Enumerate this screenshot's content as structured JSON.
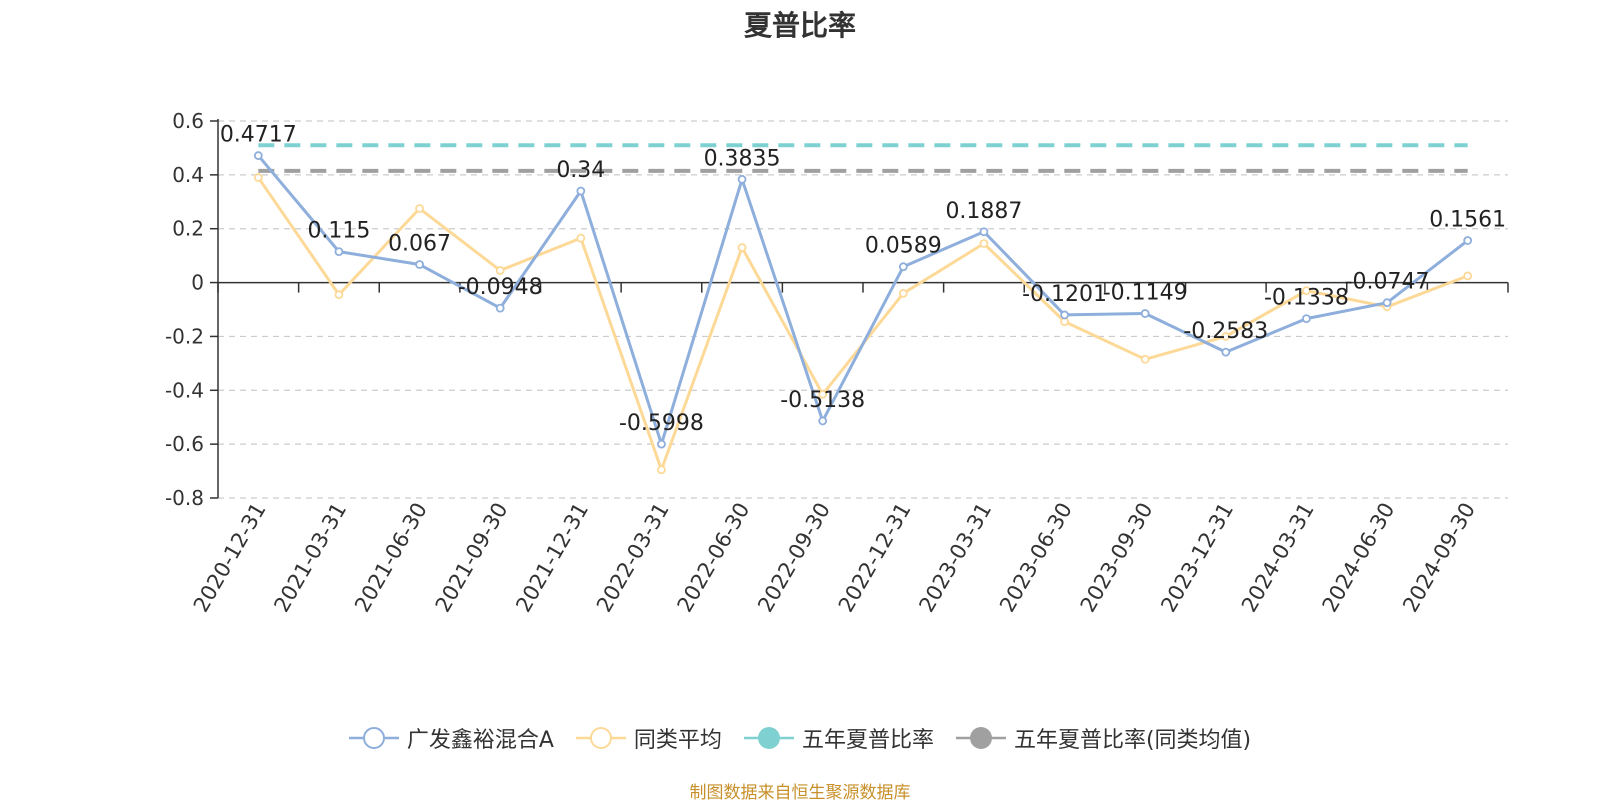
{
  "chart_data": {
    "type": "line",
    "title": "夏普比率",
    "categories": [
      "2020-12-31",
      "2021-03-31",
      "2021-06-30",
      "2021-09-30",
      "2021-12-31",
      "2022-03-31",
      "2022-06-30",
      "2022-09-30",
      "2022-12-31",
      "2023-03-31",
      "2023-06-30",
      "2023-09-30",
      "2023-12-31",
      "2024-03-31",
      "2024-06-30",
      "2024-09-30"
    ],
    "series": [
      {
        "name": "广发鑫裕混合A",
        "color": "#8eaedb",
        "values": [
          0.4717,
          0.115,
          0.067,
          -0.0948,
          0.34,
          -0.5998,
          0.3835,
          -0.5138,
          0.0589,
          0.1887,
          -0.1201,
          -0.1149,
          -0.2583,
          -0.1338,
          -0.0747,
          0.1561
        ],
        "value_labels": [
          "0.4717",
          "0.115",
          "0.067",
          "-0.0948",
          "0.34",
          "-0.5998",
          "0.3835",
          "-0.5138",
          "0.0589",
          "0.1887",
          "-0.1201",
          "-0.1149",
          "-0.2583",
          "-0.1338",
          "-0.0747",
          "0.1561"
        ]
      },
      {
        "name": "同类平均",
        "color": "#fdd998",
        "values": [
          0.39,
          -0.045,
          0.275,
          0.045,
          0.165,
          -0.695,
          0.13,
          -0.415,
          -0.04,
          0.145,
          -0.145,
          -0.285,
          -0.2,
          -0.03,
          -0.09,
          0.025
        ]
      }
    ],
    "reference_lines": [
      {
        "name": "五年夏普比率",
        "value": 0.51,
        "color": "#7fd1d1",
        "style": "dashed"
      },
      {
        "name": "五年夏普比率(同类均值)",
        "value": 0.415,
        "color": "#a0a0a0",
        "style": "dashed"
      }
    ],
    "y_ticks": [
      "0.6",
      "0.4",
      "0.2",
      "0",
      "-0.2",
      "-0.4",
      "-0.6",
      "-0.8"
    ],
    "ylim": [
      -0.8,
      0.6
    ],
    "grid": true,
    "legend_position": "bottom"
  },
  "legend": {
    "items": [
      {
        "label": "广发鑫裕混合A",
        "icon": "hollow-circle-line",
        "color": "#8eaedb"
      },
      {
        "label": "同类平均",
        "icon": "hollow-circle-line",
        "color": "#fdd998"
      },
      {
        "label": "五年夏普比率",
        "icon": "filled-circle-line",
        "color": "#7fd1d1"
      },
      {
        "label": "五年夏普比率(同类均值)",
        "icon": "filled-circle-line",
        "color": "#a0a0a0"
      }
    ]
  },
  "footer": {
    "source": "制图数据来自恒生聚源数据库",
    "color": "#c8902a"
  }
}
